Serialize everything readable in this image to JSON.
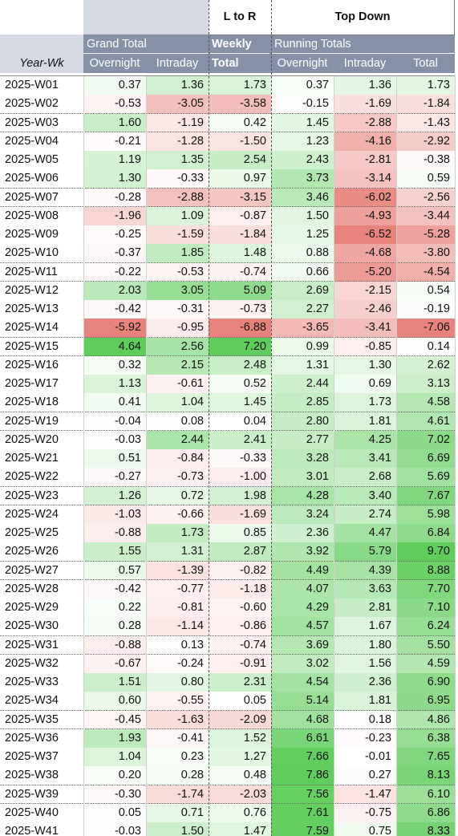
{
  "headers": {
    "l_to_r": "L to R",
    "top_down": "Top Down",
    "grand_total": "Grand Total",
    "weekly": "Weekly",
    "running_totals": "Running Totals",
    "year_wk": "Year-Wk",
    "overnight": "Overnight",
    "intraday": "Intraday",
    "total": "Total"
  },
  "colors": {
    "header_band": "#8691a8",
    "header_left_block": "#d4d9e4",
    "positive": "#57bb8a",
    "negative": "#e67c73",
    "neutral": "#ffffff"
  },
  "rows": [
    [
      "2025-W01",
      "0.37",
      "1.36",
      "1.73",
      "0.37",
      "1.36",
      "1.73"
    ],
    [
      "2025-W02",
      "-0.53",
      "-3.05",
      "-3.58",
      "-0.15",
      "-1.69",
      "-1.84"
    ],
    [
      "2025-W03",
      "1.60",
      "-1.19",
      "0.42",
      "1.45",
      "-2.88",
      "-1.43"
    ],
    [
      "2025-W04",
      "-0.21",
      "-1.28",
      "-1.50",
      "1.23",
      "-4.16",
      "-2.92"
    ],
    [
      "2025-W05",
      "1.19",
      "1.35",
      "2.54",
      "2.43",
      "-2.81",
      "-0.38"
    ],
    [
      "2025-W06",
      "1.30",
      "-0.33",
      "0.97",
      "3.73",
      "-3.14",
      "0.59"
    ],
    [
      "2025-W07",
      "-0.28",
      "-2.88",
      "-3.15",
      "3.46",
      "-6.02",
      "-2.56"
    ],
    [
      "2025-W08",
      "-1.96",
      "1.09",
      "-0.87",
      "1.50",
      "-4.93",
      "-3.44"
    ],
    [
      "2025-W09",
      "-0.25",
      "-1.59",
      "-1.84",
      "1.25",
      "-6.52",
      "-5.28"
    ],
    [
      "2025-W10",
      "-0.37",
      "1.85",
      "1.48",
      "0.88",
      "-4.68",
      "-3.80"
    ],
    [
      "2025-W11",
      "-0.22",
      "-0.53",
      "-0.74",
      "0.66",
      "-5.20",
      "-4.54"
    ],
    [
      "2025-W12",
      "2.03",
      "3.05",
      "5.09",
      "2.69",
      "-2.15",
      "0.54"
    ],
    [
      "2025-W13",
      "-0.42",
      "-0.31",
      "-0.73",
      "2.27",
      "-2.46",
      "-0.19"
    ],
    [
      "2025-W14",
      "-5.92",
      "-0.95",
      "-6.88",
      "-3.65",
      "-3.41",
      "-7.06"
    ],
    [
      "2025-W15",
      "4.64",
      "2.56",
      "7.20",
      "0.99",
      "-0.85",
      "0.14"
    ],
    [
      "2025-W16",
      "0.32",
      "2.15",
      "2.48",
      "1.31",
      "1.30",
      "2.62"
    ],
    [
      "2025-W17",
      "1.13",
      "-0.61",
      "0.52",
      "2.44",
      "0.69",
      "3.13"
    ],
    [
      "2025-W18",
      "0.41",
      "1.04",
      "1.45",
      "2.85",
      "1.73",
      "4.58"
    ],
    [
      "2025-W19",
      "-0.04",
      "0.08",
      "0.04",
      "2.80",
      "1.81",
      "4.61"
    ],
    [
      "2025-W20",
      "-0.03",
      "2.44",
      "2.41",
      "2.77",
      "4.25",
      "7.02"
    ],
    [
      "2025-W21",
      "0.51",
      "-0.84",
      "-0.33",
      "3.28",
      "3.41",
      "6.69"
    ],
    [
      "2025-W22",
      "-0.27",
      "-0.73",
      "-1.00",
      "3.01",
      "2.68",
      "5.69"
    ],
    [
      "2025-W23",
      "1.26",
      "0.72",
      "1.98",
      "4.28",
      "3.40",
      "7.67"
    ],
    [
      "2025-W24",
      "-1.03",
      "-0.66",
      "-1.69",
      "3.24",
      "2.74",
      "5.98"
    ],
    [
      "2025-W25",
      "-0.88",
      "1.73",
      "0.85",
      "2.36",
      "4.47",
      "6.84"
    ],
    [
      "2025-W26",
      "1.55",
      "1.31",
      "2.87",
      "3.92",
      "5.79",
      "9.70"
    ],
    [
      "2025-W27",
      "0.57",
      "-1.39",
      "-0.82",
      "4.49",
      "4.39",
      "8.88"
    ],
    [
      "2025-W28",
      "-0.42",
      "-0.77",
      "-1.18",
      "4.07",
      "3.63",
      "7.70"
    ],
    [
      "2025-W29",
      "0.22",
      "-0.81",
      "-0.60",
      "4.29",
      "2.81",
      "7.10"
    ],
    [
      "2025-W30",
      "0.28",
      "-1.14",
      "-0.86",
      "4.57",
      "1.67",
      "6.24"
    ],
    [
      "2025-W31",
      "-0.88",
      "0.13",
      "-0.74",
      "3.69",
      "1.80",
      "5.50"
    ],
    [
      "2025-W32",
      "-0.67",
      "-0.24",
      "-0.91",
      "3.02",
      "1.56",
      "4.59"
    ],
    [
      "2025-W33",
      "1.51",
      "0.80",
      "2.31",
      "4.54",
      "2.36",
      "6.90"
    ],
    [
      "2025-W34",
      "0.60",
      "-0.55",
      "0.05",
      "5.14",
      "1.81",
      "6.95"
    ],
    [
      "2025-W35",
      "-0.45",
      "-1.63",
      "-2.09",
      "4.68",
      "0.18",
      "4.86"
    ],
    [
      "2025-W36",
      "1.93",
      "-0.41",
      "1.52",
      "6.61",
      "-0.23",
      "6.38"
    ],
    [
      "2025-W37",
      "1.04",
      "0.23",
      "1.27",
      "7.66",
      "-0.01",
      "7.65"
    ],
    [
      "2025-W38",
      "0.20",
      "0.28",
      "0.48",
      "7.86",
      "0.27",
      "8.13"
    ],
    [
      "2025-W39",
      "-0.30",
      "-1.74",
      "-2.03",
      "7.56",
      "-1.47",
      "6.10"
    ],
    [
      "2025-W40",
      "0.05",
      "0.71",
      "0.76",
      "7.61",
      "-0.75",
      "6.86"
    ],
    [
      "2025-W41",
      "-0.03",
      "1.50",
      "1.47",
      "7.59",
      "0.75",
      "8.33"
    ]
  ]
}
